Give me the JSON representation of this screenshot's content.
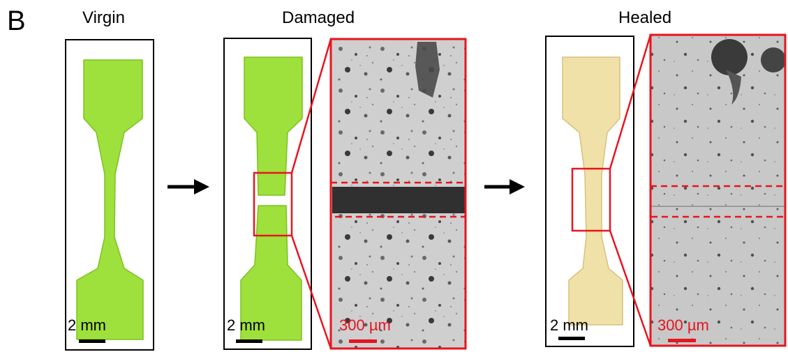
{
  "panel_letter": "B",
  "titles": {
    "virgin": "Virgin",
    "damaged": "Damaged",
    "healed": "Healed"
  },
  "scale_bars": {
    "virgin": "2 mm",
    "damaged": "2 mm",
    "damaged_zoom": "300 µm",
    "healed": "2 mm",
    "healed_zoom": "300 µm"
  },
  "colors": {
    "virgin_specimen": "#9ee03c",
    "damaged_specimen": "#9ee03c",
    "healed_specimen": "#efe1a8",
    "highlight": "#e8141e",
    "arrow": "#000000"
  }
}
